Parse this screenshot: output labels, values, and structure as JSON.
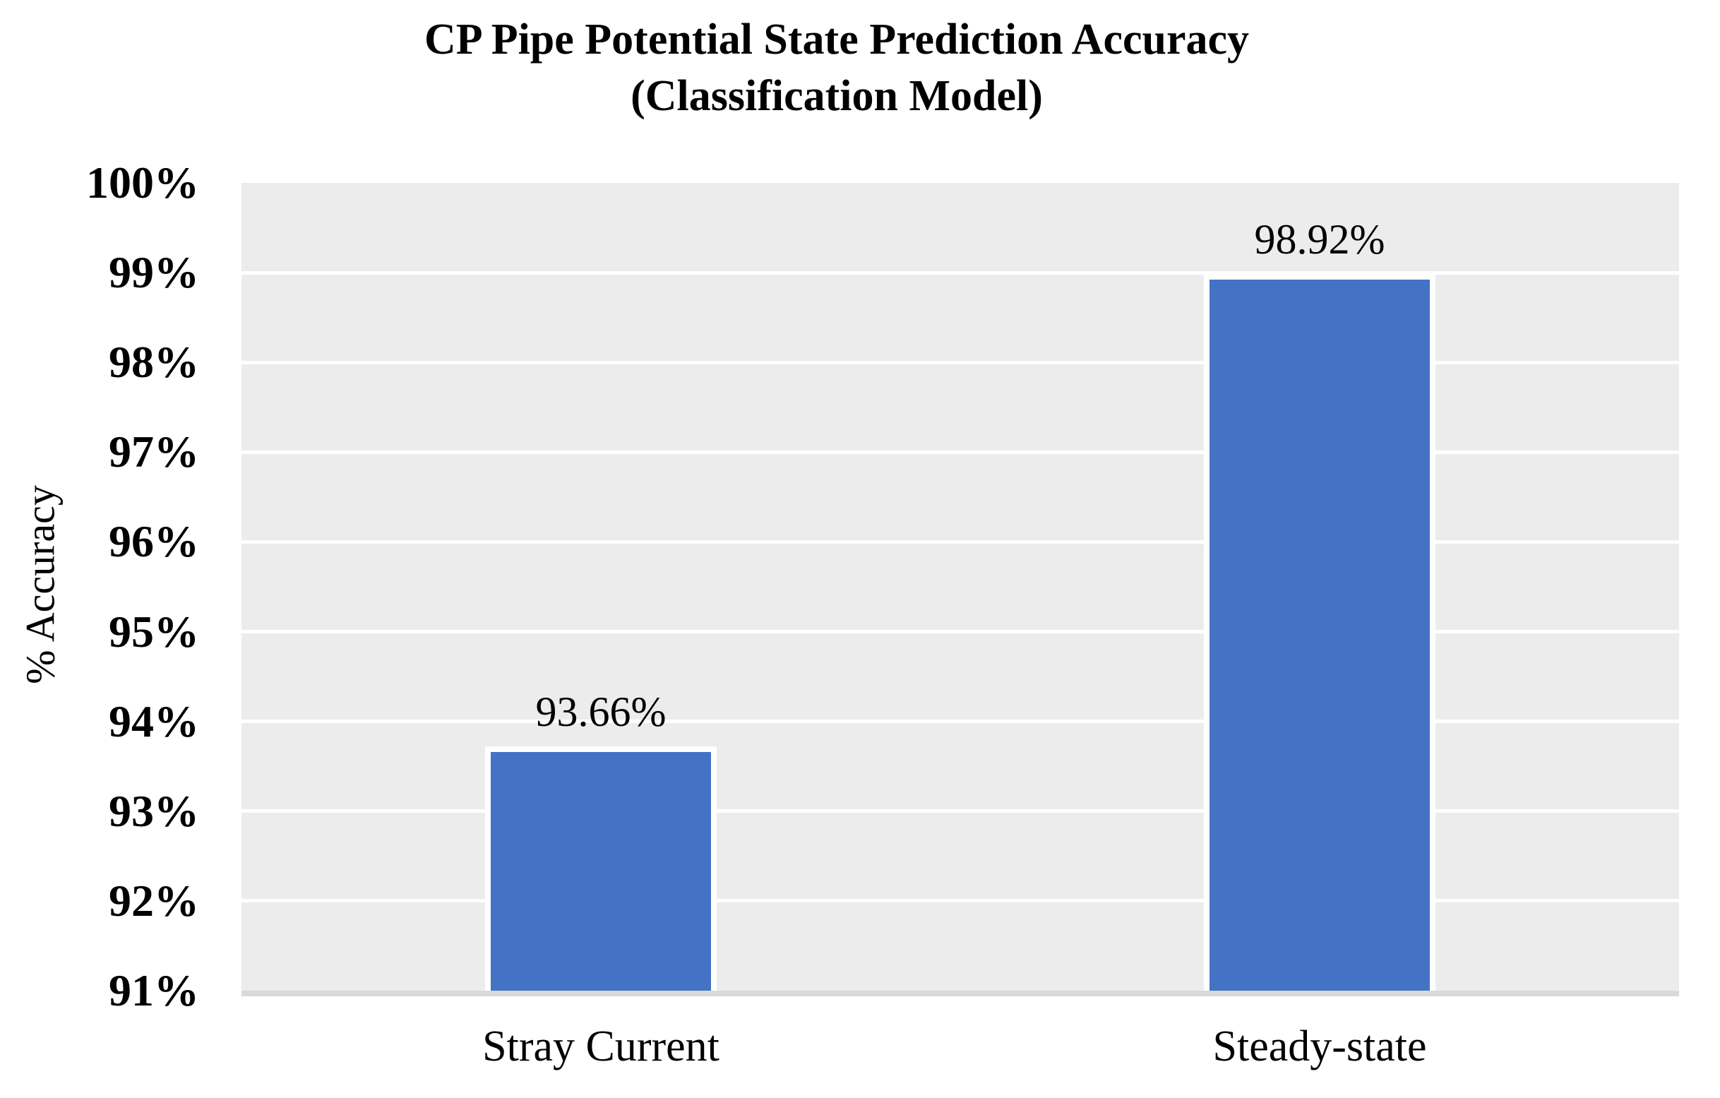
{
  "title": {
    "line1": "CP Pipe Potential State Prediction Accuracy",
    "line2": "(Classification Model)"
  },
  "y_axis": {
    "title": "% Accuracy",
    "ticks": [
      "100%",
      "99%",
      "98%",
      "97%",
      "96%",
      "95%",
      "94%",
      "93%",
      "92%",
      "91%"
    ]
  },
  "chart_data": {
    "type": "bar",
    "title": "CP Pipe Potential State Prediction Accuracy (Classification Model)",
    "categories": [
      "Stray Current",
      "Steady-state"
    ],
    "values": [
      93.66,
      98.92
    ],
    "data_labels": [
      "93.66%",
      "98.92%"
    ],
    "xlabel": "",
    "ylabel": "% Accuracy",
    "ylim": [
      91,
      100
    ],
    "ytick_step": 1,
    "grid": true,
    "legend": "none",
    "colors": {
      "bar_fill": "#4472C4",
      "bar_border": "#FFFFFF",
      "plot_background": "#ECECEC",
      "gridline": "#FFFFFF",
      "axis_line": "#D9D9D9",
      "text": "#000000",
      "page_background": "#FFFFFF"
    }
  }
}
